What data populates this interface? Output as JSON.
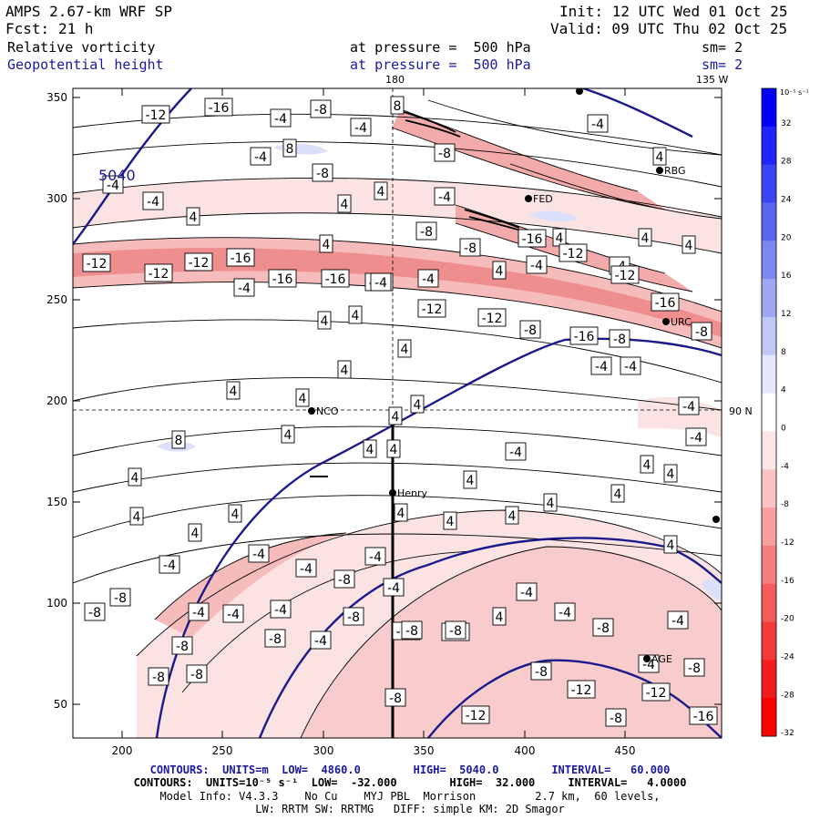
{
  "header": {
    "model": "AMPS 2.67-km WRF SP",
    "fcst_label": "Fcst:",
    "fcst_hours": "21 h",
    "init": "Init: 12 UTC Wed 01 Oct 25",
    "valid": "Valid: 09 UTC Thu 02 Oct 25",
    "field1": "Relative vorticity",
    "field2": "Geopotential height",
    "level1": "at pressure =  500 hPa",
    "level2": "at pressure =  500 hPa",
    "sm1": "sm= 2",
    "sm2": "sm= 2"
  },
  "map": {
    "meridian_180": "180",
    "meridian_135w": "135 W",
    "lat_90n": "90 N",
    "x_ticks": [
      "200",
      "250",
      "300",
      "350",
      "400",
      "450"
    ],
    "y_ticks": [
      "350",
      "300",
      "250",
      "200",
      "150",
      "100",
      "50"
    ],
    "height_contour_label": "5040",
    "stations": [
      "RBG",
      "FED",
      "URC",
      "NCO",
      "Henry",
      "AGE"
    ],
    "vort_labels": [
      "-4",
      "-4",
      "-4",
      "-8",
      "-4",
      "8",
      "8",
      "-4",
      "-4",
      "-8",
      "-4",
      "-8",
      "-4",
      "4",
      "4",
      "4",
      "-4",
      "-8",
      "-8",
      "4",
      "4",
      "4",
      "4",
      "4",
      "4",
      "-4",
      "-4",
      "-12",
      "-12",
      "-16",
      "-12",
      "-16",
      "-16",
      "-12",
      "-16",
      "-12",
      "-4",
      "-4",
      "-4",
      "-16",
      "-12",
      "-12",
      "4",
      "4",
      "-12",
      "-8",
      "-16",
      "-8",
      "-4",
      "-8",
      "-4",
      "4",
      "4",
      "4",
      "4",
      "4",
      "4",
      "4",
      "-4",
      "-4",
      "-4",
      "8",
      "4",
      "4",
      "4",
      "4",
      "4",
      "4",
      "4",
      "4",
      "4",
      "4",
      "4",
      "-4",
      "4",
      "4",
      "4",
      "-4",
      "-4",
      "-4",
      "4",
      "-4",
      "-4",
      "-8",
      "-8",
      "-8",
      "-4",
      "-4",
      "-4",
      "-4",
      "4",
      "-8",
      "-8",
      "-8",
      "-4",
      "-8",
      "-8",
      "-8",
      "-4",
      "-12",
      "-12",
      "-8",
      "-4",
      "-8",
      "-12",
      "-8",
      "-12",
      "-8",
      "-12",
      "-16",
      "-8",
      "-8",
      "-12",
      "-16"
    ]
  },
  "colorbar": {
    "unit": "10⁻⁵ s⁻¹",
    "labels": [
      "32",
      "28",
      "24",
      "20",
      "16",
      "12",
      "8",
      "4",
      "0",
      "-4",
      "-8",
      "-12",
      "-16",
      "-20",
      "-24",
      "-28",
      "-32"
    ]
  },
  "footer": {
    "line1": "CONTOURS:  UNITS=m  LOW=  4860.0        HIGH=  5040.0        INTERVAL=   60.000",
    "line2": "CONTOURS:  UNITS=10⁻⁵ s⁻¹  LOW=  -32.000        HIGH=  32.000     INTERVAL=   4.0000",
    "line3": "Model Info: V4.3.3    No Cu    MYJ PBL  Morrison         2.7 km,  60 levels,",
    "line4": "LW: RRTM SW: RRTMG   DIFF: simple KM: 2D Smagor"
  },
  "colors": {
    "height_contour": "#1a1a8c",
    "text_blue": "#1a1aa0",
    "pos_vort_strong": "#0000ff",
    "neg_vort_strong": "#ff0000",
    "neg_vort_weak": "#fbe3e3"
  }
}
